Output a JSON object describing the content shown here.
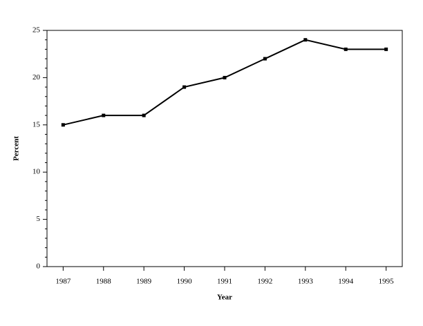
{
  "chart_data": {
    "type": "line",
    "x_label": "Year",
    "y_label": "Percent",
    "x": [
      1987,
      1988,
      1989,
      1990,
      1991,
      1992,
      1993,
      1994,
      1995
    ],
    "values": [
      15,
      16,
      16,
      19,
      20,
      22,
      24,
      23,
      23
    ],
    "color": "#000000",
    "xlim": [
      1986.6,
      1995.4
    ],
    "xticks": [
      1987,
      1988,
      1989,
      1990,
      1991,
      1992,
      1993,
      1994,
      1995
    ],
    "ylim": [
      0,
      25
    ],
    "yticks": [
      0,
      5,
      10,
      15,
      20,
      25
    ],
    "yminorticks": [
      1,
      2,
      3,
      4,
      6,
      7,
      8,
      9,
      11,
      12,
      13,
      14,
      16,
      17,
      18,
      19,
      21,
      22,
      23,
      24
    ],
    "grid": false
  }
}
